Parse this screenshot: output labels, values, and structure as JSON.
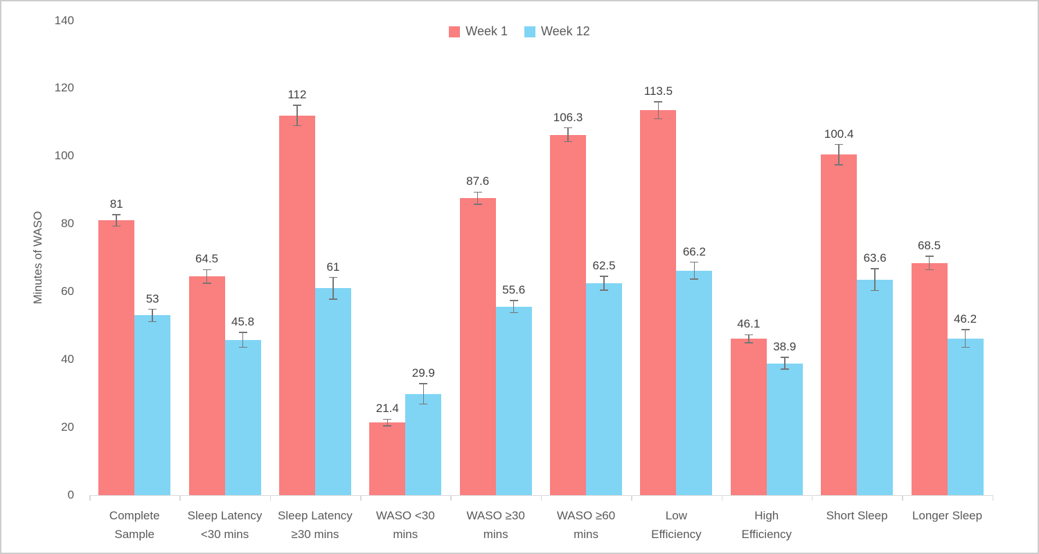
{
  "chart_data": {
    "type": "bar",
    "title": "",
    "ylabel": "Minutes of WASO",
    "xlabel": "",
    "ylim": [
      0,
      140
    ],
    "yticks": [
      0,
      20,
      40,
      60,
      80,
      100,
      120,
      140
    ],
    "grid": false,
    "legend_position": "top-center",
    "categories": [
      {
        "label": "Complete Sample",
        "lines": [
          "Complete",
          "Sample"
        ]
      },
      {
        "label": "Sleep Latency <30 mins",
        "lines": [
          "Sleep Latency",
          "<30 mins"
        ]
      },
      {
        "label": "Sleep Latency ≥30 mins",
        "lines": [
          "Sleep Latency",
          "≥30 mins"
        ]
      },
      {
        "label": "WASO <30 mins",
        "lines": [
          "WASO <30",
          "mins"
        ]
      },
      {
        "label": "WASO ≥30 mins",
        "lines": [
          "WASO ≥30",
          "mins"
        ]
      },
      {
        "label": "WASO ≥60 mins",
        "lines": [
          "WASO ≥60",
          "mins"
        ]
      },
      {
        "label": "Low Efficiency",
        "lines": [
          "Low",
          "Efficiency"
        ]
      },
      {
        "label": "High Efficiency",
        "lines": [
          "High",
          "Efficiency"
        ]
      },
      {
        "label": "Short Sleep",
        "lines": [
          "Short Sleep"
        ]
      },
      {
        "label": "Longer Sleep",
        "lines": [
          "Longer Sleep"
        ]
      }
    ],
    "series": [
      {
        "name": "Week 1",
        "color": "#FA7F7F",
        "values": [
          81,
          64.5,
          112,
          21.4,
          87.6,
          106.3,
          113.5,
          46.1,
          100.4,
          68.5
        ],
        "errors_plus_minus": [
          1.7,
          2.0,
          3.0,
          1.0,
          1.8,
          2.0,
          2.5,
          1.2,
          3.0,
          2.0
        ]
      },
      {
        "name": "Week 12",
        "color": "#80D5F5",
        "values": [
          53,
          45.8,
          61,
          29.9,
          55.6,
          62.5,
          66.2,
          38.9,
          63.6,
          46.2
        ],
        "errors_plus_minus": [
          1.8,
          2.2,
          3.2,
          3.0,
          1.8,
          2.0,
          2.5,
          1.7,
          3.2,
          2.6
        ]
      }
    ],
    "data_labels_shown": true,
    "colors": {
      "error_bar": "#757575",
      "axis_line": "#d9d9d9",
      "axis_text": "#595959",
      "data_label_text": "#3f3f3f",
      "frame_border": "#cdcdcd",
      "background": "#ffffff"
    }
  }
}
